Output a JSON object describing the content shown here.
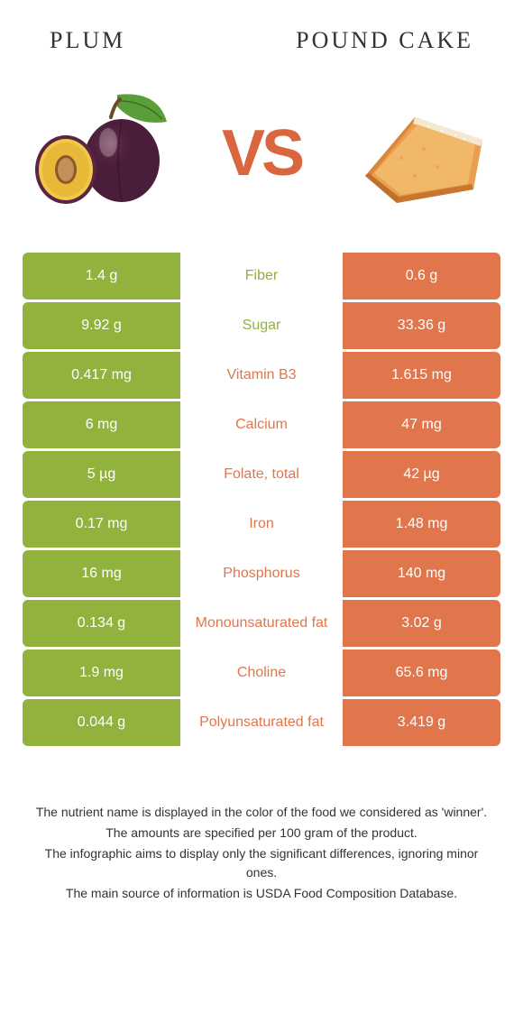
{
  "foods": {
    "left": {
      "name": "Plum",
      "color": "#92b23e"
    },
    "right": {
      "name": "Pound cake",
      "color": "#e1764d"
    }
  },
  "vs_label": "VS",
  "vs_color": "#d9663d",
  "rows": [
    {
      "left": "1.4 g",
      "label": "Fiber",
      "right": "0.6 g",
      "winner": "left"
    },
    {
      "left": "9.92 g",
      "label": "Sugar",
      "right": "33.36 g",
      "winner": "left"
    },
    {
      "left": "0.417 mg",
      "label": "Vitamin B3",
      "right": "1.615 mg",
      "winner": "right"
    },
    {
      "left": "6 mg",
      "label": "Calcium",
      "right": "47 mg",
      "winner": "right"
    },
    {
      "left": "5 µg",
      "label": "Folate, total",
      "right": "42 µg",
      "winner": "right"
    },
    {
      "left": "0.17 mg",
      "label": "Iron",
      "right": "1.48 mg",
      "winner": "right"
    },
    {
      "left": "16 mg",
      "label": "Phosphorus",
      "right": "140 mg",
      "winner": "right"
    },
    {
      "left": "0.134 g",
      "label": "Monounsaturated fat",
      "right": "3.02 g",
      "winner": "right"
    },
    {
      "left": "1.9 mg",
      "label": "Choline",
      "right": "65.6 mg",
      "winner": "right"
    },
    {
      "left": "0.044 g",
      "label": "Polyunsaturated fat",
      "right": "3.419 g",
      "winner": "right"
    }
  ],
  "footer": [
    "The nutrient name is displayed in the color of the food we considered as 'winner'.",
    "The amounts are specified per 100 gram of the product.",
    "The infographic aims to display only the significant differences, ignoring minor ones.",
    "The main source of information is USDA Food Composition Database."
  ]
}
